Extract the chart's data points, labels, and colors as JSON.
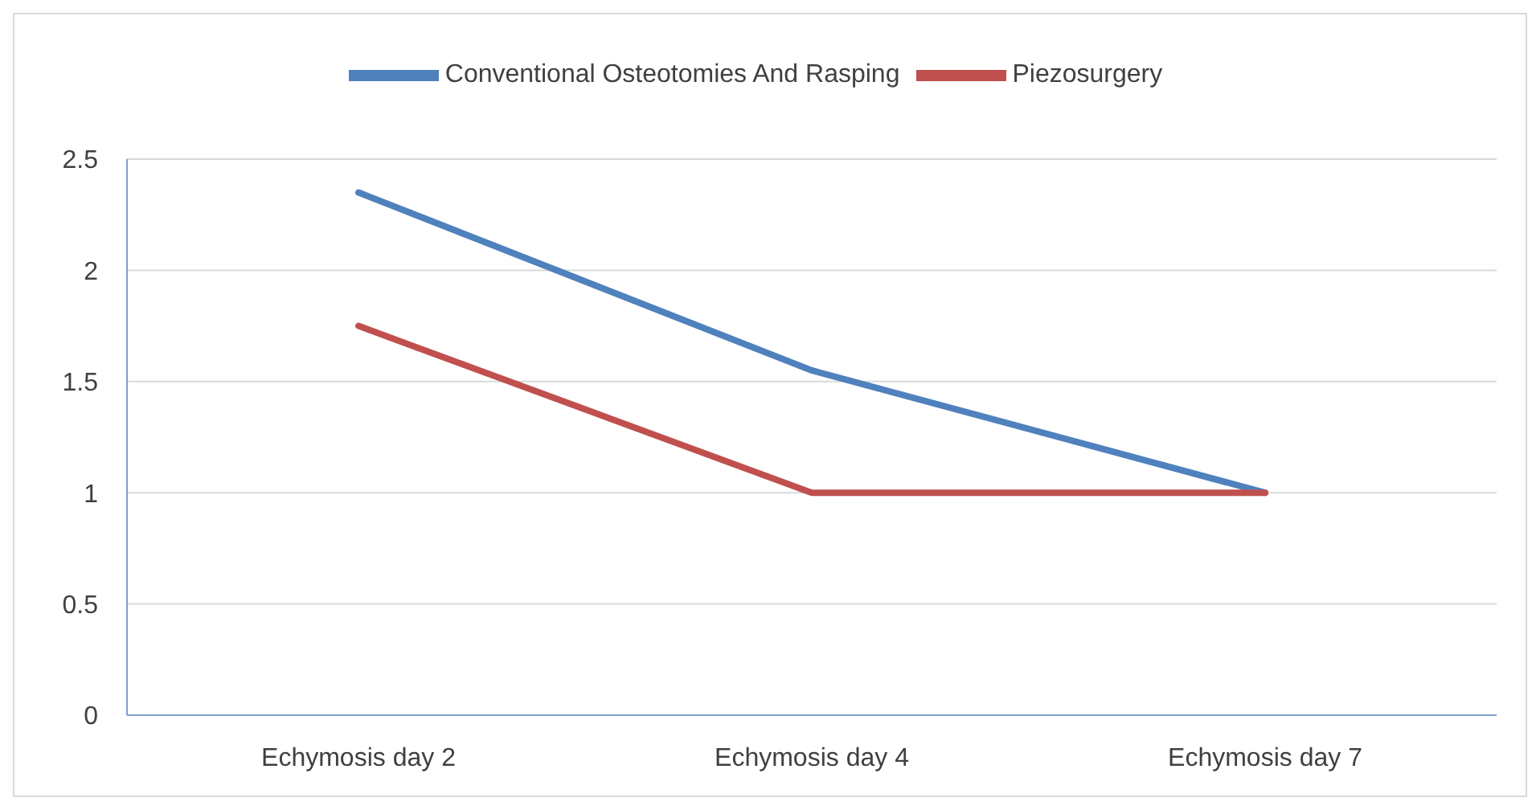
{
  "chart_data": {
    "type": "line",
    "categories": [
      "Echymosis day 2",
      "Echymosis day 4",
      "Echymosis day 7"
    ],
    "series": [
      {
        "name": "Conventional Osteotomies And Rasping",
        "color": "#4f81bd",
        "values": [
          2.35,
          1.55,
          1.0
        ]
      },
      {
        "name": "Piezosurgery",
        "color": "#c0504d",
        "values": [
          1.75,
          1.0,
          1.0
        ]
      }
    ],
    "ylim": [
      0,
      2.5
    ],
    "yticks": [
      0,
      0.5,
      1,
      1.5,
      2,
      2.5
    ],
    "grid": "y",
    "legend": "top",
    "marker": "none",
    "line_style": "solid"
  }
}
